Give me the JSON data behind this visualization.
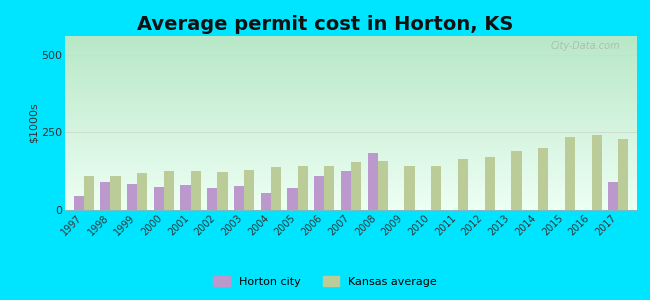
{
  "title": "Average permit cost in Horton, KS",
  "ylabel": "$1000s",
  "years": [
    1997,
    1998,
    1999,
    2000,
    2001,
    2002,
    2003,
    2004,
    2005,
    2006,
    2007,
    2008,
    2009,
    2010,
    2011,
    2012,
    2013,
    2014,
    2015,
    2016,
    2017
  ],
  "horton": [
    45,
    90,
    85,
    75,
    80,
    70,
    78,
    55,
    72,
    110,
    125,
    185,
    0,
    0,
    0,
    0,
    0,
    0,
    0,
    0,
    90
  ],
  "kansas": [
    110,
    110,
    120,
    125,
    125,
    123,
    130,
    138,
    143,
    143,
    153,
    158,
    143,
    143,
    165,
    170,
    190,
    200,
    235,
    242,
    228
  ],
  "horton_color": "#bb99cc",
  "kansas_color": "#bbcc99",
  "outer_bg": "#00e5ff",
  "ylim": [
    0,
    560
  ],
  "yticks": [
    0,
    250,
    500
  ],
  "bar_width": 0.38,
  "title_fontsize": 14,
  "legend_horton": "Horton city",
  "legend_kansas": "Kansas average",
  "watermark": "City-Data.com",
  "grid_color": "#ccddcc",
  "bg_gradient_top": "#b8e8c8",
  "bg_gradient_bottom": "#eefff4"
}
